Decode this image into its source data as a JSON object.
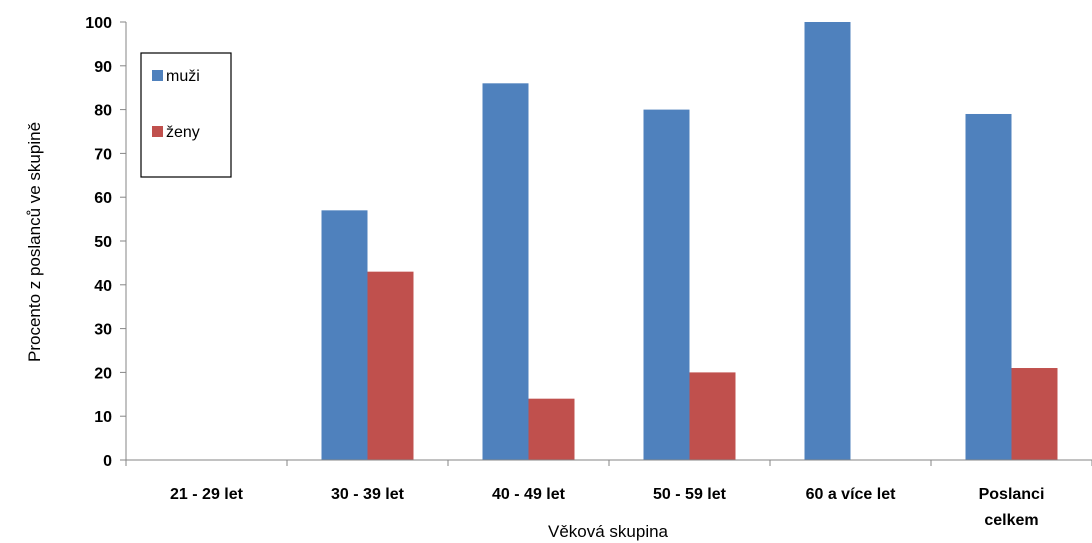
{
  "chart_data": {
    "type": "bar",
    "categories": [
      "21 - 29 let",
      "30 - 39 let",
      "40 - 49 let",
      "50 - 59 let",
      "60 a více let",
      "Poslanci celkem"
    ],
    "series": [
      {
        "name": "muži",
        "color": "#4f81bd",
        "values": [
          0,
          57,
          86,
          80,
          100,
          79
        ]
      },
      {
        "name": "ženy",
        "color": "#c0504d",
        "values": [
          0,
          43,
          14,
          20,
          0,
          21
        ]
      }
    ],
    "xlabel": "Věková skupina",
    "ylabel": "Procento z poslanců ve skupině",
    "ylim": [
      0,
      100
    ],
    "yticks": [
      0,
      10,
      20,
      30,
      40,
      50,
      60,
      70,
      80,
      90,
      100
    ],
    "grid": false,
    "legend_position": "top-left"
  }
}
